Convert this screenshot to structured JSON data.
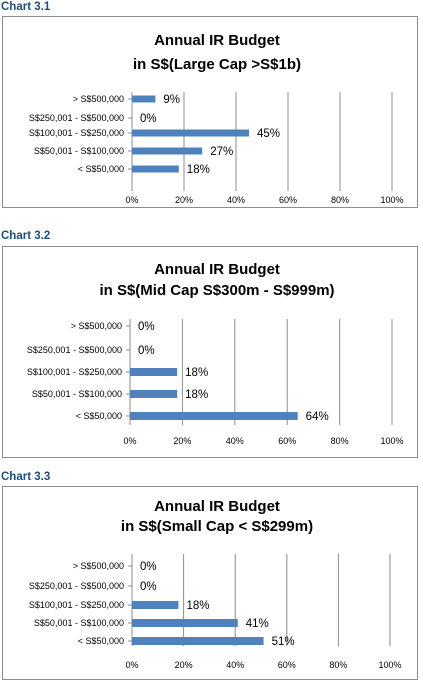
{
  "chart_data": [
    {
      "label": "Chart 3.1",
      "type": "bar",
      "orientation": "horizontal",
      "title": [
        "Annual IR Budget",
        "in S$(Large Cap >S$1b)"
      ],
      "categories": [
        "> S$500,000",
        "S$250,001 - S$500,000",
        "S$100,001 - S$250,000",
        "S$50,001 - S$100,000",
        "< S$50,000"
      ],
      "values": [
        9,
        0,
        45,
        27,
        18
      ],
      "value_labels": [
        "9%",
        "0%",
        "45%",
        "27%",
        "18%"
      ],
      "xlim": [
        0,
        100
      ],
      "xticks": [
        "0%",
        "20%",
        "40%",
        "60%",
        "80%",
        "100%"
      ],
      "grid": true,
      "bar_color": "#4f81bd"
    },
    {
      "label": "Chart 3.2",
      "type": "bar",
      "orientation": "horizontal",
      "title": [
        "Annual IR Budget",
        "in S$(Mid Cap S$300m - S$999m)"
      ],
      "categories": [
        "> S$500,000",
        "S$250,001 - S$500,000",
        "S$100,001 - S$250,000",
        "S$50,001 - S$100,000",
        "< S$50,000"
      ],
      "values": [
        0,
        0,
        18,
        18,
        64
      ],
      "value_labels": [
        "0%",
        "0%",
        "18%",
        "18%",
        "64%"
      ],
      "xlim": [
        0,
        100
      ],
      "xticks": [
        "0%",
        "20%",
        "40%",
        "60%",
        "80%",
        "100%"
      ],
      "grid": true,
      "bar_color": "#4f81bd"
    },
    {
      "label": "Chart 3.3",
      "type": "bar",
      "orientation": "horizontal",
      "title": [
        "Annual IR Budget",
        "in S$(Small Cap < S$299m)"
      ],
      "categories": [
        "> S$500,000",
        "S$250,001 - S$500,000",
        "S$100,001 - S$250,000",
        "S$50,001 - S$100,000",
        "< S$50,000"
      ],
      "values": [
        0,
        0,
        18,
        41,
        51
      ],
      "value_labels": [
        "0%",
        "0%",
        "18%",
        "41%",
        "51%"
      ],
      "xlim": [
        0,
        100
      ],
      "xticks": [
        "0%",
        "20%",
        "40%",
        "60%",
        "80%",
        "100%"
      ],
      "grid": true,
      "bar_color": "#4f81bd"
    }
  ]
}
